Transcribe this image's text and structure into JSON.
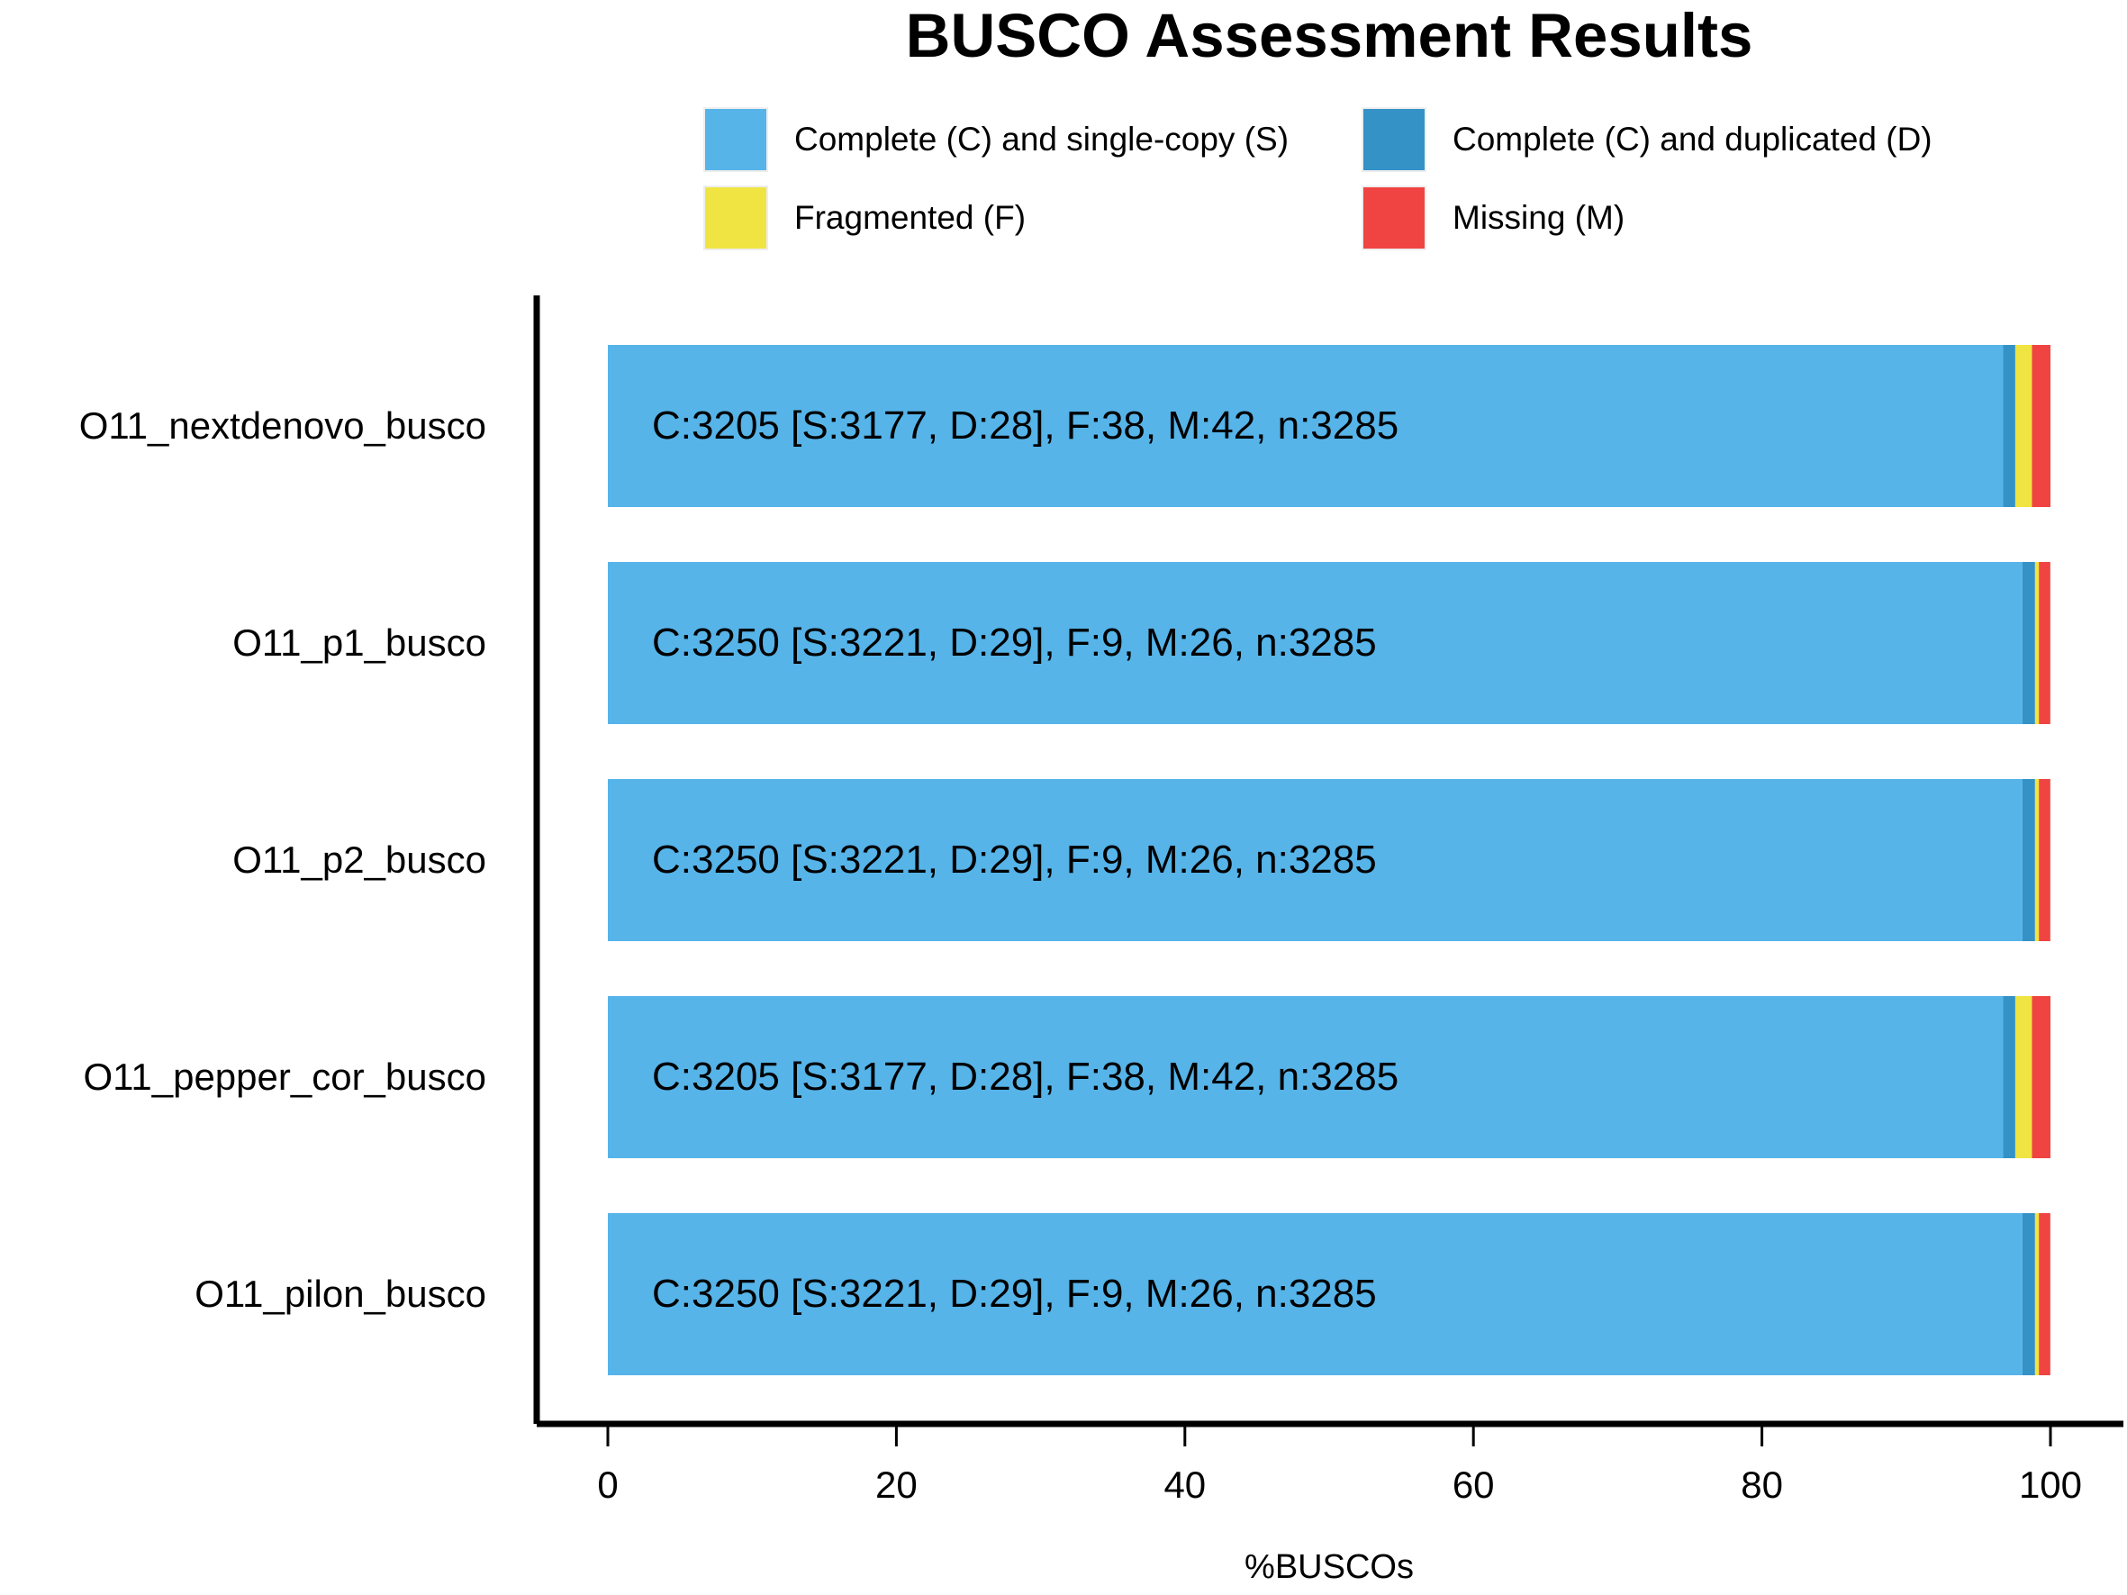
{
  "chart_data": {
    "type": "bar",
    "orientation": "horizontal",
    "stacked": true,
    "title": "BUSCO Assessment Results",
    "xlabel": "%BUSCOs",
    "ylabel": "",
    "xlim": [
      0,
      100
    ],
    "x_ticks": [
      0,
      20,
      40,
      60,
      80,
      100
    ],
    "grid": false,
    "legend_placement": "top",
    "categories": [
      "O11_nextdenovo_busco",
      "O11_p1_busco",
      "O11_p2_busco",
      "O11_pepper_cor_busco",
      "O11_pilon_busco"
    ],
    "series": [
      {
        "name": "Complete (C) and single-copy (S)",
        "color": "#56b4e9",
        "values": [
          96.71,
          98.05,
          98.05,
          96.71,
          98.05
        ]
      },
      {
        "name": "Complete (C) and duplicated (D)",
        "color": "#3492c7",
        "values": [
          0.85,
          0.88,
          0.88,
          0.85,
          0.88
        ]
      },
      {
        "name": "Fragmented (F)",
        "color": "#f0e442",
        "values": [
          1.16,
          0.27,
          0.27,
          1.16,
          0.27
        ]
      },
      {
        "name": "Missing (M)",
        "color": "#f04442",
        "values": [
          1.28,
          0.79,
          0.79,
          1.28,
          0.79
        ]
      }
    ],
    "annotations": [
      "C:3205 [S:3177, D:28], F:38, M:42, n:3285",
      "C:3250 [S:3221, D:29], F:9, M:26, n:3285",
      "C:3250 [S:3221, D:29], F:9, M:26, n:3285",
      "C:3205 [S:3177, D:28], F:38, M:42, n:3285",
      "C:3250 [S:3221, D:29], F:9, M:26, n:3285"
    ]
  }
}
